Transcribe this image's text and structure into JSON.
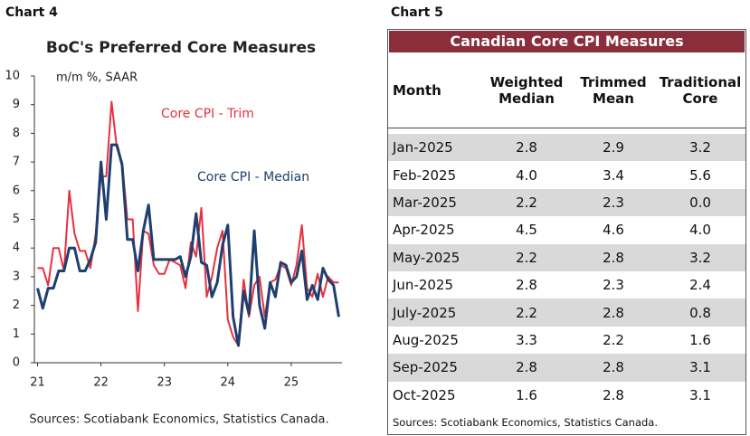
{
  "chart_data": {
    "type": "line",
    "panel_label": "Chart 4",
    "title": "BoC's Preferred Core Measures",
    "subtitle": "m/m %, SAAR",
    "source": "Sources: Scotiabank Economics, Statistics Canada.",
    "x": [
      21,
      21.083,
      21.167,
      21.25,
      21.333,
      21.417,
      21.5,
      21.583,
      21.667,
      21.75,
      21.833,
      21.917,
      22,
      22.083,
      22.167,
      22.25,
      22.333,
      22.417,
      22.5,
      22.583,
      22.667,
      22.75,
      22.833,
      22.917,
      23,
      23.083,
      23.167,
      23.25,
      23.333,
      23.417,
      23.5,
      23.583,
      23.667,
      23.75,
      23.833,
      23.917,
      24,
      24.083,
      24.167,
      24.25,
      24.333,
      24.417,
      24.5,
      24.583,
      24.667,
      24.75,
      24.833,
      24.917,
      25,
      25.083,
      25.167,
      25.25,
      25.333,
      25.417,
      25.5,
      25.583,
      25.667,
      25.75
    ],
    "series": [
      {
        "name": "Core CPI - Trim",
        "color": "#e8303f",
        "values": [
          3.3,
          3.3,
          2.7,
          4.0,
          4.0,
          3.2,
          6.0,
          4.5,
          3.9,
          3.9,
          3.3,
          4.5,
          6.5,
          6.5,
          9.1,
          7.5,
          7.0,
          5.0,
          5.0,
          1.8,
          4.6,
          4.5,
          3.4,
          3.1,
          3.1,
          3.6,
          3.5,
          3.4,
          2.6,
          4.2,
          3.7,
          5.4,
          2.3,
          3.0,
          4.0,
          4.6,
          1.5,
          0.9,
          0.6,
          2.9,
          1.6,
          2.7,
          3.0,
          1.6,
          2.8,
          2.9,
          3.4,
          3.3,
          2.7,
          3.4,
          4.8,
          2.6,
          2.3,
          3.1,
          2.3,
          3.0,
          2.8,
          2.8
        ]
      },
      {
        "name": "Core CPI - Median",
        "color": "#1f3f6e",
        "values": [
          2.6,
          1.9,
          2.6,
          2.6,
          3.2,
          3.2,
          4.0,
          4.0,
          3.2,
          3.2,
          3.6,
          4.2,
          7.0,
          5.0,
          7.6,
          7.6,
          6.9,
          4.3,
          4.3,
          3.2,
          4.6,
          5.5,
          3.6,
          3.6,
          3.6,
          3.6,
          3.6,
          3.7,
          3.0,
          3.7,
          5.2,
          3.5,
          3.4,
          2.3,
          2.8,
          4.1,
          4.8,
          1.6,
          0.6,
          2.5,
          1.7,
          4.6,
          2.0,
          1.2,
          2.8,
          2.3,
          3.5,
          3.4,
          2.8,
          3.0,
          3.9,
          2.2,
          2.7,
          2.2,
          3.3,
          2.9,
          2.7,
          1.6
        ]
      }
    ],
    "xlim": [
      20.95,
      25.8
    ],
    "xticks": [
      {
        "value": 21,
        "label": "21"
      },
      {
        "value": 22,
        "label": "22"
      },
      {
        "value": 23,
        "label": "23"
      },
      {
        "value": 24,
        "label": "24"
      },
      {
        "value": 25,
        "label": "25"
      }
    ],
    "ylim": [
      0,
      10
    ],
    "yticks": [
      0,
      1,
      2,
      3,
      4,
      5,
      6,
      7,
      8,
      9,
      10
    ],
    "grid": false
  },
  "table": {
    "panel_label": "Chart 5",
    "title": "Canadian Core CPI Measures",
    "columns": [
      "Month",
      "Weighted Median",
      "Trimmed Mean",
      "Traditional Core"
    ],
    "rows": [
      [
        "Jan-2025",
        "2.8",
        "2.9",
        "3.2"
      ],
      [
        "Feb-2025",
        "4.0",
        "3.4",
        "5.6"
      ],
      [
        "Mar-2025",
        "2.2",
        "2.3",
        "0.0"
      ],
      [
        "Apr-2025",
        "4.5",
        "4.6",
        "4.0"
      ],
      [
        "May-2025",
        "2.2",
        "2.8",
        "3.2"
      ],
      [
        "Jun-2025",
        "2.8",
        "2.3",
        "2.4"
      ],
      [
        "July-2025",
        "2.2",
        "2.8",
        "0.8"
      ],
      [
        "Aug-2025",
        "3.3",
        "2.2",
        "1.6"
      ],
      [
        "Sep-2025",
        "2.8",
        "2.8",
        "3.1"
      ],
      [
        "Oct-2025",
        "1.6",
        "2.8",
        "3.1"
      ]
    ],
    "source": "Sources: Scotiabank Economics, Statistics Canada."
  }
}
